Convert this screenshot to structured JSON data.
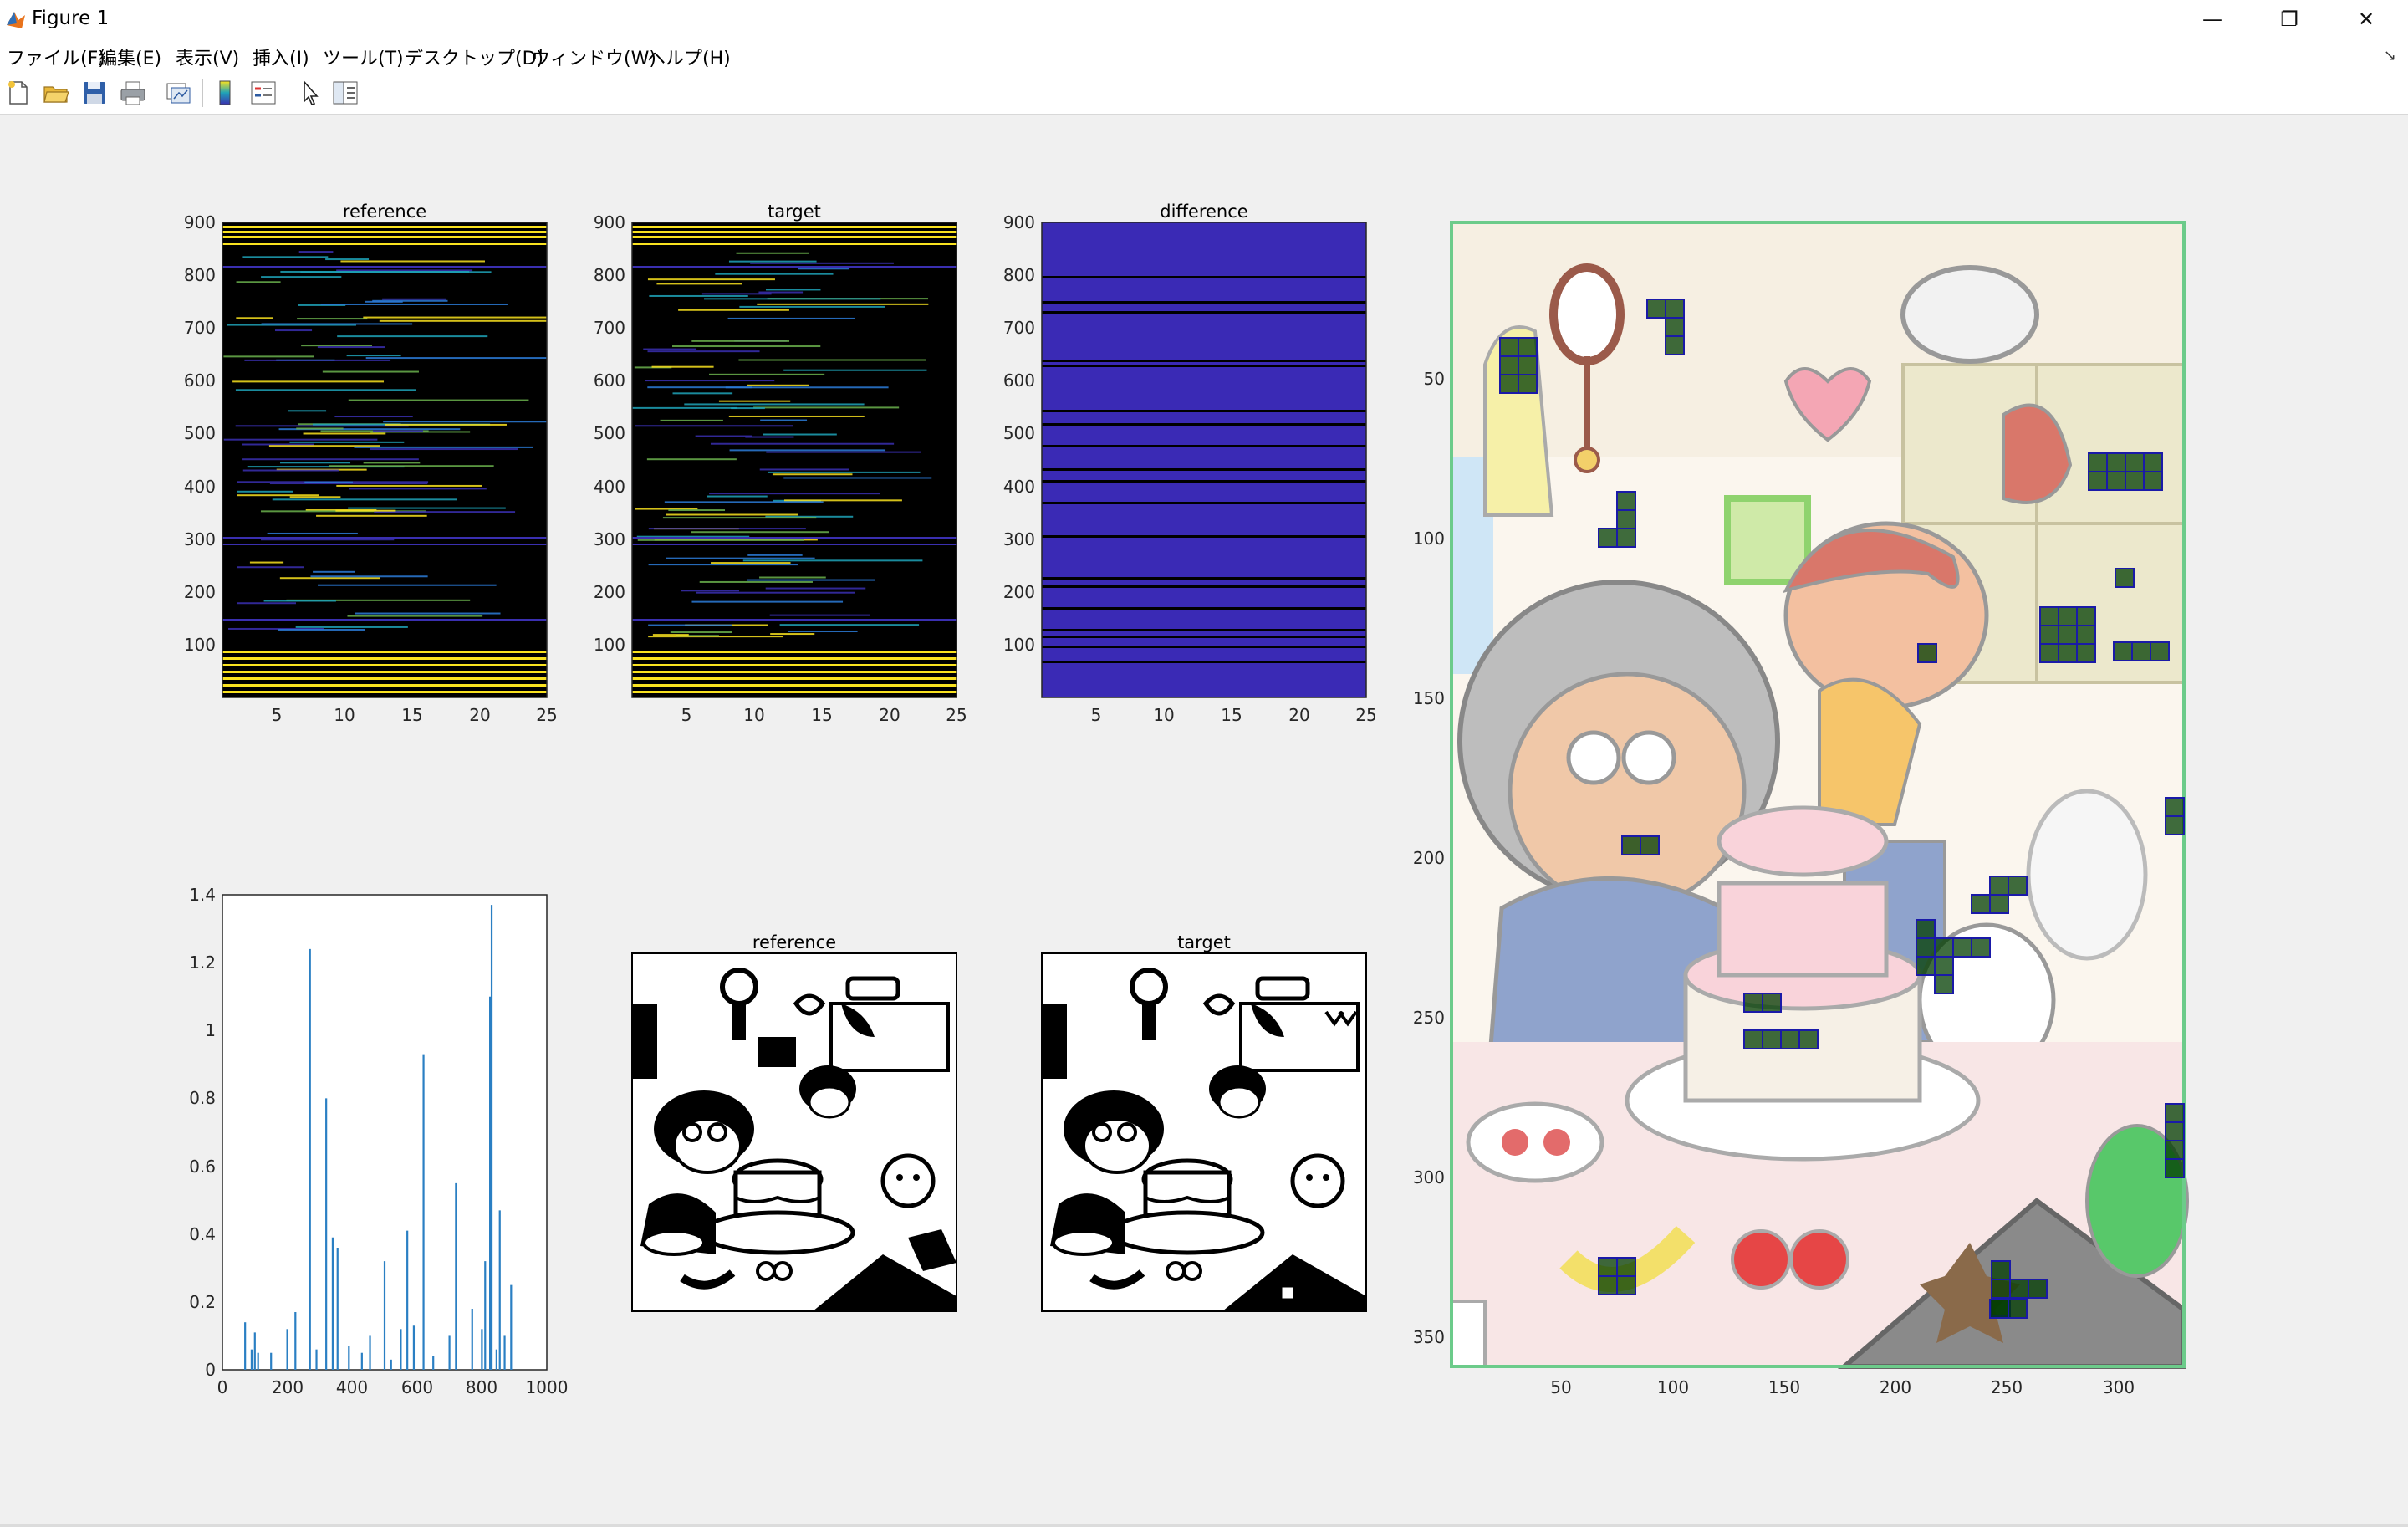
{
  "window": {
    "title": "Figure 1",
    "controls": {
      "minimize": "—",
      "maximize": "❐",
      "close": "✕"
    }
  },
  "menu": [
    "ファイル(F)",
    "編集(E)",
    "表示(V)",
    "挿入(I)",
    "ツール(T)",
    "デスクトップ(D)",
    "ウィンドウ(W)",
    "ヘルプ(H)"
  ],
  "toolbar_icons": [
    "new-figure-icon",
    "open-file-icon",
    "save-icon",
    "print-icon",
    "link-plot-icon",
    "insert-colorbar-icon",
    "insert-legend-icon",
    "select-arrow-icon",
    "property-inspector-icon"
  ],
  "colors": {
    "colormap_top": "#f9e21f",
    "colormap_mid": "#1fa3b8",
    "colormap_low": "#3a2fb0",
    "difference_fill": "#3a2ab5",
    "stem_line": "#2a7fc3",
    "box_outline": "#1a1aa8",
    "axes_frame": "#6ccb8a"
  },
  "plots": {
    "ref_heat": {
      "title": "reference",
      "yticks": [
        "900",
        "800",
        "700",
        "600",
        "500",
        "400",
        "300",
        "200",
        "100"
      ],
      "xticks": [
        "5",
        "10",
        "15",
        "20",
        "25"
      ]
    },
    "tgt_heat": {
      "title": "target",
      "yticks": [
        "900",
        "800",
        "700",
        "600",
        "500",
        "400",
        "300",
        "200",
        "100"
      ],
      "xticks": [
        "5",
        "10",
        "15",
        "20",
        "25"
      ]
    },
    "diff_heat": {
      "title": "difference",
      "yticks": [
        "900",
        "800",
        "700",
        "600",
        "500",
        "400",
        "300",
        "200",
        "100"
      ],
      "xticks": [
        "5",
        "10",
        "15",
        "20",
        "25"
      ]
    },
    "stem": {
      "title": "",
      "yticks": [
        "1.4",
        "1.2",
        "1",
        "0.8",
        "0.6",
        "0.4",
        "0.2",
        "0"
      ],
      "xticks": [
        "0",
        "200",
        "400",
        "600",
        "800",
        "1000"
      ]
    },
    "ref_bw": {
      "title": "reference"
    },
    "tgt_bw": {
      "title": "target"
    },
    "color_img": {
      "yticks": [
        "50",
        "100",
        "150",
        "200",
        "250",
        "300",
        "350"
      ],
      "xticks": [
        "50",
        "100",
        "150",
        "200",
        "250",
        "300"
      ]
    }
  },
  "chart_data": {
    "type": "bar",
    "series": [
      {
        "x": [
          70,
          90,
          100,
          110,
          150,
          200,
          225,
          270,
          290,
          320,
          340,
          355,
          390,
          430,
          455,
          500,
          520,
          550,
          570,
          590,
          620,
          650,
          700,
          720,
          770,
          800,
          810,
          825,
          830,
          845,
          855,
          870,
          890
        ],
        "values": [
          0.14,
          0.06,
          0.11,
          0.05,
          0.05,
          0.12,
          0.17,
          1.24,
          0.06,
          0.8,
          0.39,
          0.36,
          0.07,
          0.05,
          0.1,
          0.32,
          0.03,
          0.12,
          0.41,
          0.13,
          0.93,
          0.04,
          0.1,
          0.55,
          0.18,
          0.12,
          0.32,
          1.1,
          1.37,
          0.06,
          0.47,
          0.1,
          0.25
        ]
      }
    ],
    "xlim": [
      0,
      1000
    ],
    "ylim": [
      0,
      1.4
    ]
  }
}
